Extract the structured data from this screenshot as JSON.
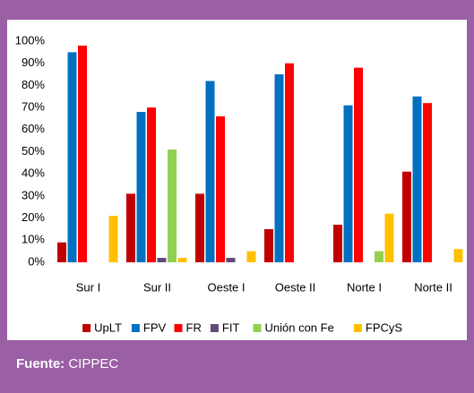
{
  "chart_data": {
    "type": "bar",
    "categories": [
      "Sur I",
      "Sur II",
      "Oeste I",
      "Oeste II",
      "Norte I",
      "Norte II"
    ],
    "series": [
      {
        "name": "UpLT",
        "color": "#c00000",
        "values": [
          9,
          31,
          31,
          15,
          17,
          41
        ]
      },
      {
        "name": "FPV",
        "color": "#0070c0",
        "values": [
          95,
          68,
          82,
          85,
          71,
          75
        ]
      },
      {
        "name": "FR",
        "color": "#ff0000",
        "values": [
          98,
          70,
          66,
          90,
          88,
          72
        ]
      },
      {
        "name": "FIT",
        "color": "#604a7b",
        "values": [
          0,
          2,
          2,
          0,
          0,
          0
        ]
      },
      {
        "name": "Unión con Fe",
        "color": "#92d050",
        "values": [
          0,
          51,
          0,
          0,
          5,
          0
        ]
      },
      {
        "name": "FPCyS",
        "color": "#ffc000",
        "values": [
          21,
          2,
          5,
          0,
          22,
          6
        ]
      }
    ],
    "ylim": [
      0,
      100
    ],
    "yticks": [
      {
        "value": 0,
        "label": "0%"
      },
      {
        "value": 10,
        "label": "10%"
      },
      {
        "value": 20,
        "label": "20%"
      },
      {
        "value": 30,
        "label": "30%"
      },
      {
        "value": 40,
        "label": "40%"
      },
      {
        "value": 50,
        "label": "50%"
      },
      {
        "value": 60,
        "label": "60%"
      },
      {
        "value": 70,
        "label": "70%"
      },
      {
        "value": 80,
        "label": "80%"
      },
      {
        "value": 90,
        "label": "90%"
      },
      {
        "value": 100,
        "label": "100%"
      }
    ],
    "legend": "bottom"
  },
  "source": {
    "label": "Fuente:",
    "text": "CIPPEC"
  }
}
